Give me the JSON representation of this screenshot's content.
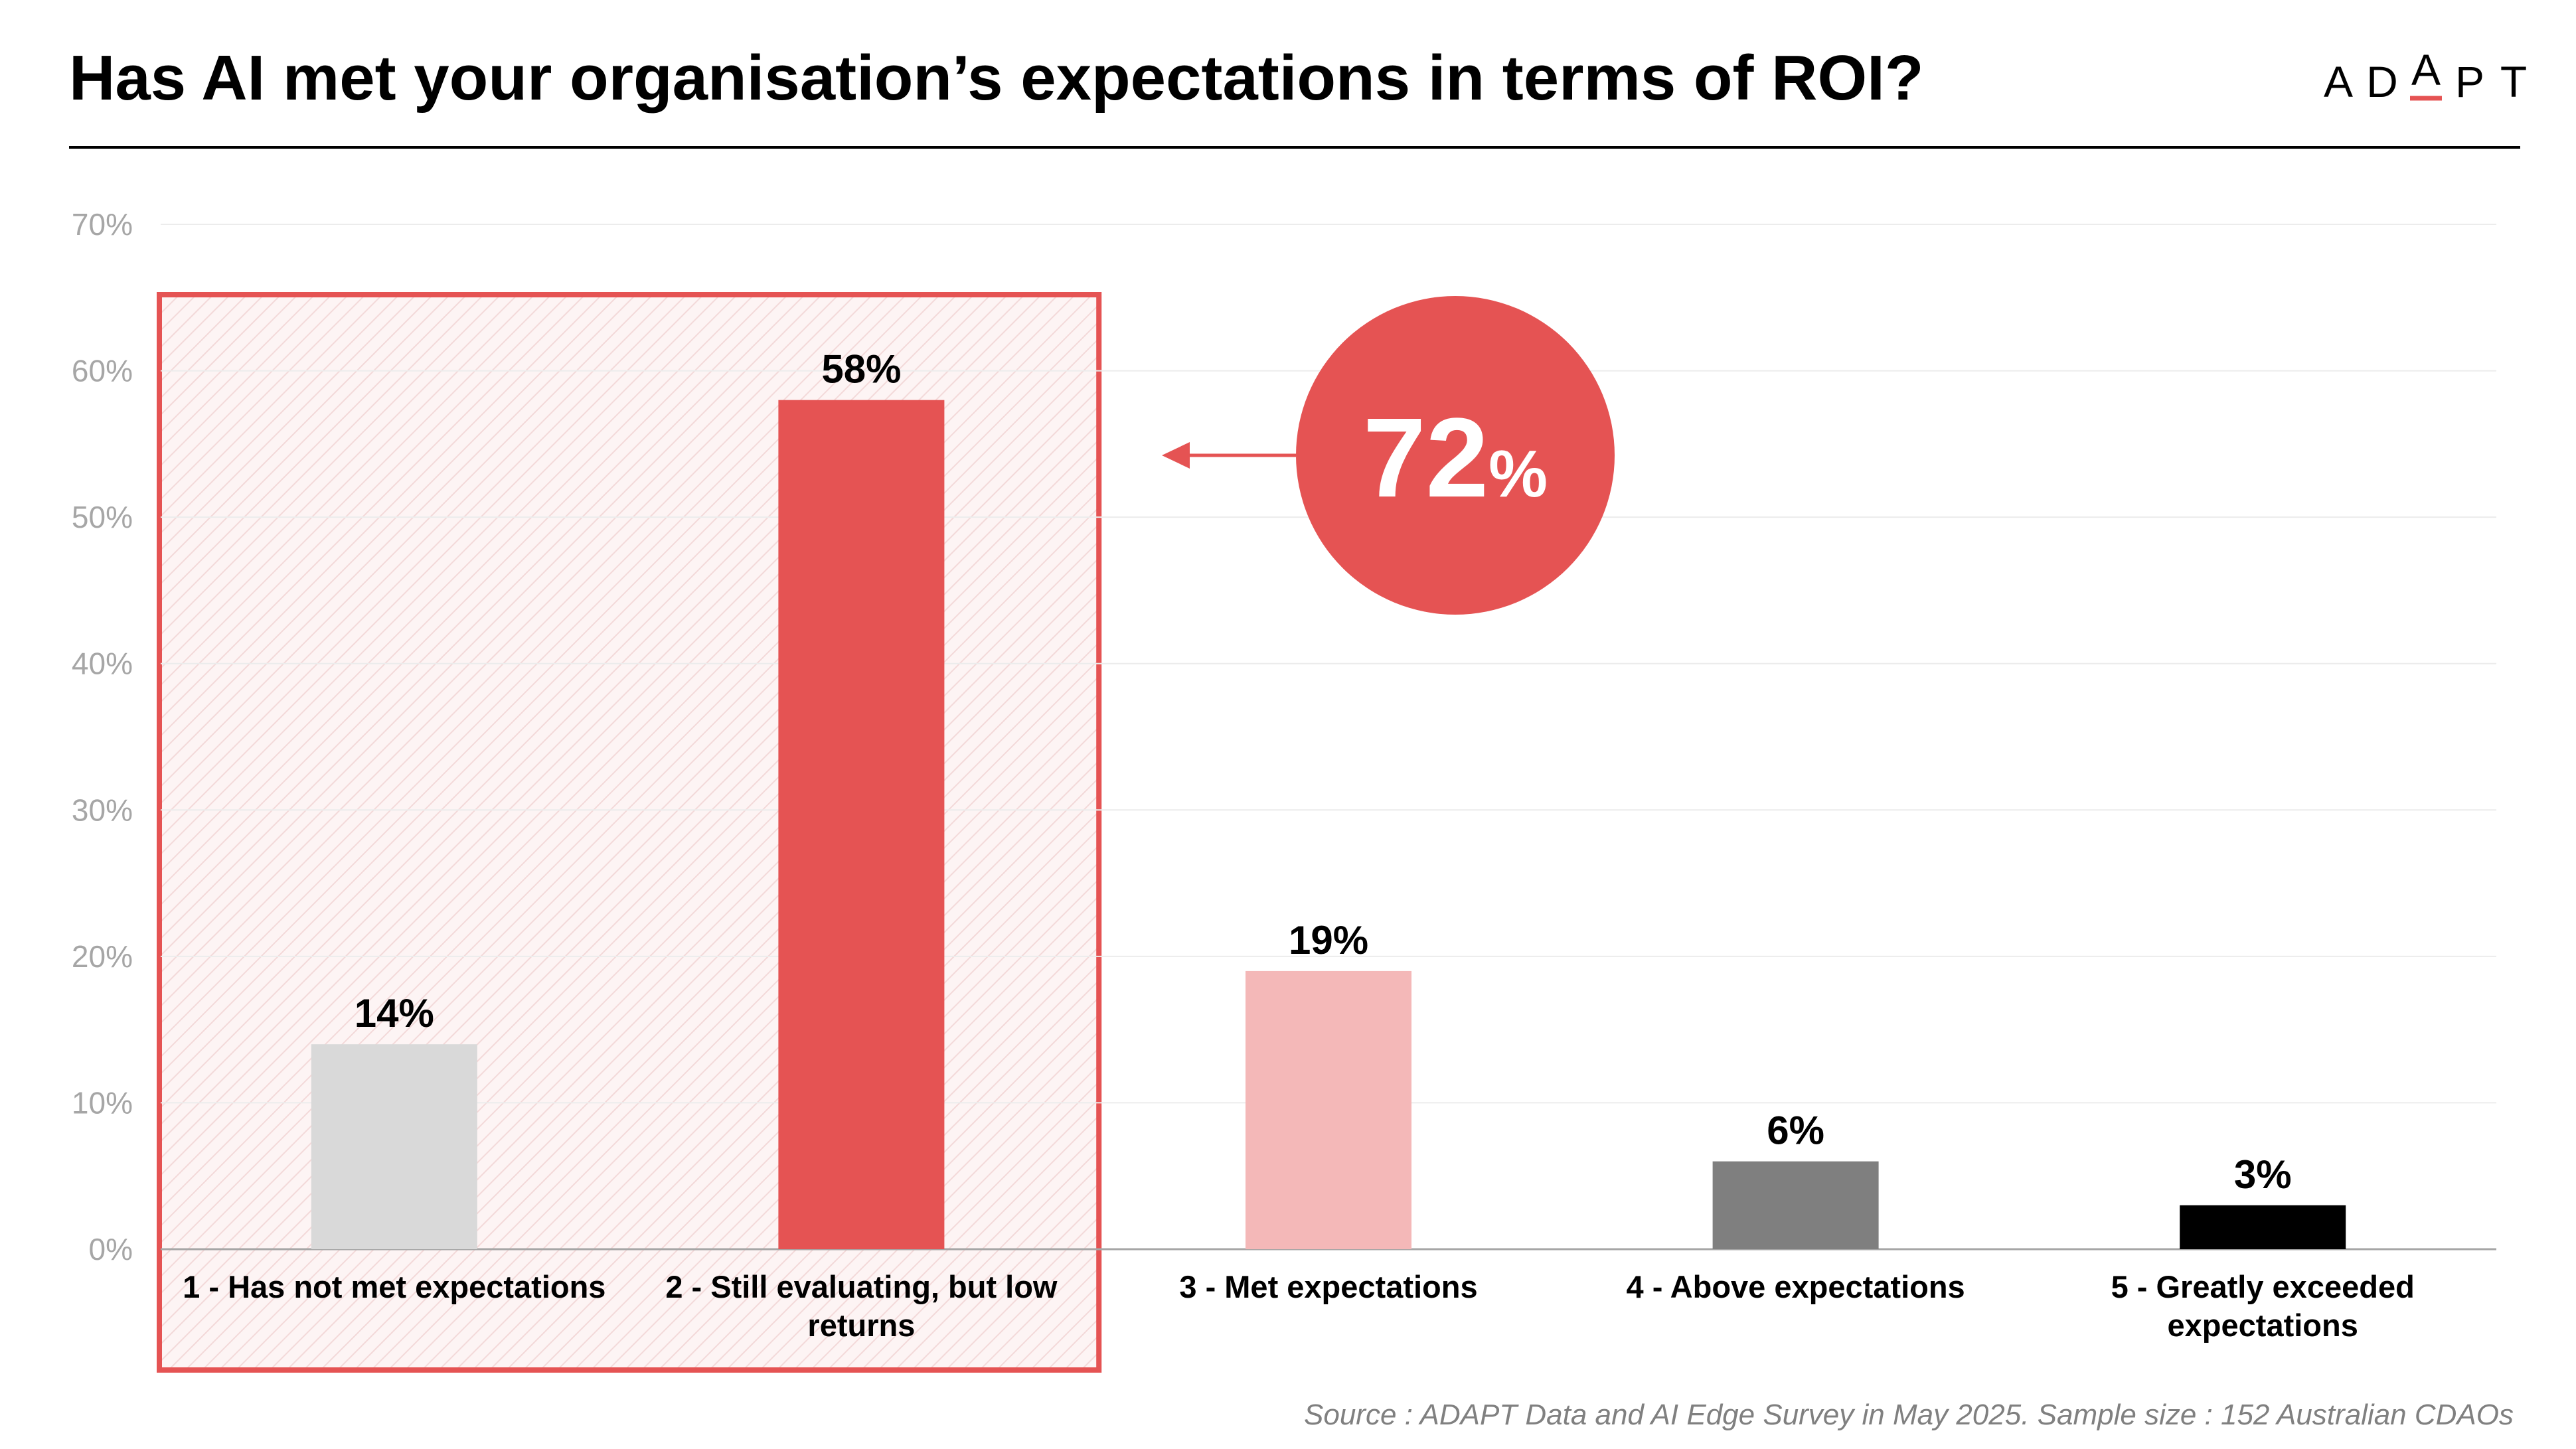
{
  "title": "Has AI met your organisation’s expectations in terms of ROI?",
  "logo": {
    "letters": [
      "A",
      "D",
      "A",
      "P",
      "T"
    ],
    "accent_color": "#e55353"
  },
  "callout": {
    "value": "72",
    "unit": "%",
    "color": "#e55353"
  },
  "source": "Source : ADAPT Data and AI Edge Survey in May 2025. Sample size : 152 Australian CDAOs",
  "chart_data": {
    "type": "bar",
    "title": "Has AI met your organisation’s expectations in terms of ROI?",
    "xlabel": "",
    "ylabel": "",
    "ylim": [
      0,
      70
    ],
    "y_ticks": [
      0,
      10,
      20,
      30,
      40,
      50,
      60,
      70
    ],
    "y_tick_labels": [
      "0%",
      "10%",
      "20%",
      "30%",
      "40%",
      "50%",
      "60%",
      "70%"
    ],
    "grid": true,
    "legend": "none",
    "categories": [
      [
        "1 - Has not met expectations"
      ],
      [
        "2 - Still evaluating, but low",
        "returns"
      ],
      [
        "3 - Met expectations"
      ],
      [
        "4 - Above expectations"
      ],
      [
        "5 - Greatly exceeded",
        "expectations"
      ]
    ],
    "values": [
      14,
      58,
      19,
      6,
      3
    ],
    "value_labels": [
      "14%",
      "58%",
      "19%",
      "6%",
      "3%"
    ],
    "colors": [
      "#d9d9d9",
      "#e55353",
      "#f4b8b8",
      "#7f7f7f",
      "#000000"
    ],
    "highlight": {
      "categories": [
        0,
        1
      ],
      "color": "#e55353"
    }
  }
}
